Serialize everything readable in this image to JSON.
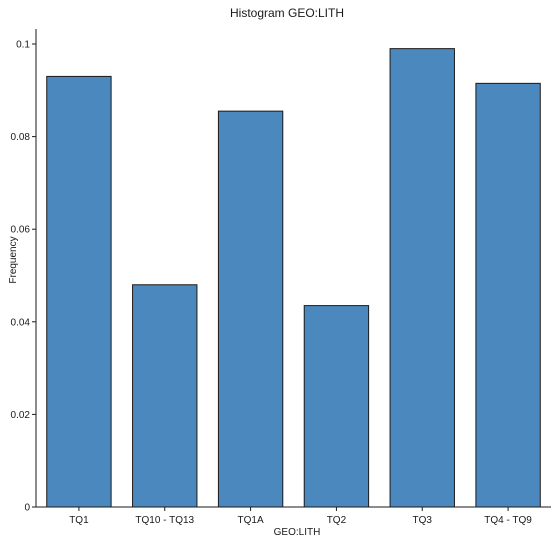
{
  "chart_data": {
    "type": "bar",
    "title": "Histogram GEO:LITH",
    "xlabel": "GEO:LITH",
    "ylabel": "Frequency",
    "categories": [
      "TQ1",
      "TQ10 - TQ13",
      "TQ1A",
      "TQ2",
      "TQ3",
      "TQ4 - TQ9"
    ],
    "values": [
      0.093,
      0.048,
      0.0855,
      0.0435,
      0.099,
      0.0915
    ],
    "ylim": [
      0,
      0.1
    ],
    "yticks": [
      0,
      0.02,
      0.04,
      0.06,
      0.08,
      0.1
    ],
    "ytick_labels": [
      "0",
      "0.02",
      "0.04",
      "0.06",
      "0.08",
      "0.1"
    ],
    "grid": false,
    "legend": "none",
    "colors": {
      "bar_fill": "#4a88be",
      "bar_stroke": "#1a1a1a",
      "axis": "#1a1a1a"
    }
  }
}
